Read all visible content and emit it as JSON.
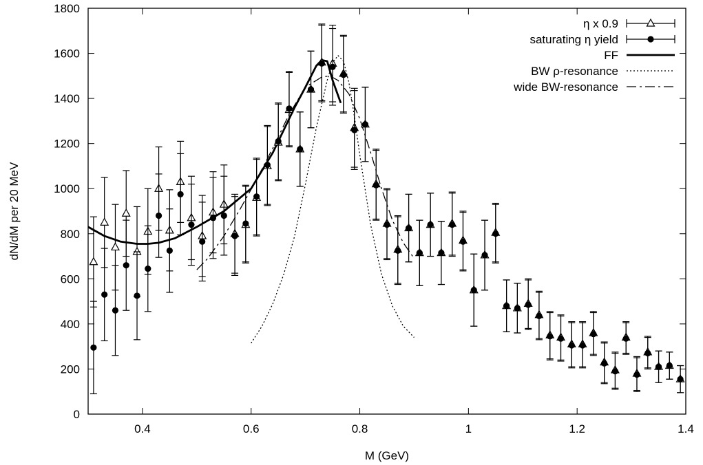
{
  "chart_data": {
    "type": "scatter",
    "title": "",
    "xlabel": "M (GeV)",
    "ylabel": "dN/dM per 20 MeV",
    "xlim": [
      0.3,
      1.4
    ],
    "ylim": [
      0,
      1800
    ],
    "xticks": [
      {
        "v": 0.4,
        "label": "0.4"
      },
      {
        "v": 0.6,
        "label": "0.6"
      },
      {
        "v": 0.8,
        "label": "0.8"
      },
      {
        "v": 1.0,
        "label": "1"
      },
      {
        "v": 1.2,
        "label": "1.2"
      },
      {
        "v": 1.4,
        "label": "1.4"
      }
    ],
    "yticks": [
      {
        "v": 0,
        "label": "0"
      },
      {
        "v": 200,
        "label": "200"
      },
      {
        "v": 400,
        "label": "400"
      },
      {
        "v": 600,
        "label": "600"
      },
      {
        "v": 800,
        "label": "800"
      },
      {
        "v": 1000,
        "label": "1000"
      },
      {
        "v": 1200,
        "label": "1200"
      },
      {
        "v": 1400,
        "label": "1400"
      },
      {
        "v": 1600,
        "label": "1600"
      },
      {
        "v": 1800,
        "label": "1800"
      }
    ],
    "grid": false,
    "legend_position": "top-right",
    "series": [
      {
        "name": "η x 0.9",
        "kind": "errorbar",
        "marker": "open-triangle",
        "x": [
          0.31,
          0.33,
          0.35,
          0.37,
          0.39,
          0.41,
          0.43,
          0.45,
          0.47,
          0.49,
          0.51,
          0.53,
          0.55,
          0.57,
          0.59,
          0.61,
          0.63,
          0.65,
          0.67,
          0.69,
          0.71,
          0.73,
          0.75,
          0.77,
          0.79,
          0.81,
          0.83,
          0.85,
          0.87,
          0.89,
          0.91,
          0.93,
          0.95,
          0.97,
          0.99,
          1.01,
          1.03,
          1.05,
          1.07,
          1.09,
          1.11,
          1.13,
          1.15,
          1.17,
          1.19,
          1.21,
          1.23,
          1.25,
          1.27,
          1.29,
          1.31,
          1.33,
          1.35,
          1.37,
          1.39
        ],
        "y": [
          675,
          850,
          740,
          890,
          720,
          810,
          1000,
          815,
          1030,
          870,
          790,
          895,
          930,
          800,
          840,
          960,
          1100,
          1205,
          1350,
          1175,
          1440,
          1560,
          1555,
          1510,
          1270,
          1285,
          1020,
          845,
          730,
          825,
          715,
          840,
          715,
          845,
          770,
          550,
          705,
          805,
          480,
          470,
          490,
          440,
          350,
          340,
          310,
          310,
          360,
          230,
          195,
          340,
          180,
          275,
          210,
          215,
          155
        ],
        "err": [
          200,
          200,
          190,
          190,
          200,
          190,
          185,
          180,
          180,
          185,
          180,
          180,
          175,
          175,
          170,
          170,
          175,
          170,
          165,
          165,
          170,
          170,
          170,
          170,
          175,
          165,
          155,
          155,
          150,
          150,
          145,
          140,
          140,
          140,
          130,
          160,
          155,
          130,
          115,
          110,
          110,
          105,
          105,
          100,
          100,
          100,
          95,
          90,
          80,
          70,
          75,
          70,
          70,
          60,
          60
        ]
      },
      {
        "name": "saturating η yield",
        "kind": "errorbar",
        "marker": "filled-circle",
        "x": [
          0.31,
          0.33,
          0.35,
          0.37,
          0.39,
          0.41,
          0.43,
          0.45,
          0.47,
          0.49,
          0.51,
          0.53,
          0.55,
          0.57,
          0.59,
          0.61,
          0.63,
          0.65,
          0.67,
          0.69,
          0.71,
          0.73,
          0.75,
          0.77,
          0.79,
          0.81,
          0.83,
          0.85,
          0.87,
          0.89,
          0.91,
          0.93,
          0.95,
          0.97,
          0.99,
          1.01,
          1.03,
          1.05,
          1.07,
          1.09,
          1.11,
          1.13,
          1.15,
          1.17,
          1.19,
          1.21,
          1.23,
          1.25,
          1.27,
          1.29,
          1.31,
          1.33,
          1.35,
          1.37,
          1.39
        ],
        "y": [
          295,
          530,
          460,
          660,
          525,
          645,
          880,
          725,
          975,
          840,
          765,
          870,
          880,
          790,
          845,
          965,
          1105,
          1210,
          1355,
          1175,
          1440,
          1555,
          1540,
          1505,
          1260,
          1285,
          1015,
          840,
          725,
          825,
          715,
          840,
          715,
          840,
          765,
          550,
          705,
          800,
          480,
          470,
          485,
          435,
          345,
          335,
          305,
          305,
          355,
          225,
          190,
          335,
          175,
          270,
          210,
          215,
          155
        ],
        "err": [
          205,
          205,
          200,
          200,
          195,
          190,
          185,
          185,
          180,
          180,
          175,
          180,
          175,
          175,
          170,
          170,
          175,
          170,
          165,
          165,
          170,
          170,
          170,
          170,
          175,
          165,
          155,
          155,
          150,
          150,
          145,
          140,
          140,
          140,
          130,
          160,
          155,
          130,
          115,
          110,
          110,
          105,
          105,
          100,
          100,
          100,
          95,
          90,
          80,
          70,
          75,
          70,
          70,
          60,
          60
        ]
      },
      {
        "name": "FF",
        "kind": "line",
        "style": "thick-solid",
        "x": [
          0.3,
          0.33,
          0.36,
          0.39,
          0.41,
          0.43,
          0.46,
          0.5,
          0.55,
          0.6,
          0.64,
          0.68,
          0.7,
          0.72,
          0.73,
          0.74,
          0.75,
          0.765
        ],
        "y": [
          830,
          790,
          765,
          755,
          755,
          760,
          780,
          830,
          900,
          1000,
          1160,
          1360,
          1450,
          1545,
          1570,
          1565,
          1480,
          1380
        ]
      },
      {
        "name": "BW ρ-resonance",
        "kind": "line",
        "style": "dotted",
        "x": [
          0.6,
          0.62,
          0.64,
          0.66,
          0.68,
          0.7,
          0.72,
          0.74,
          0.75,
          0.76,
          0.77,
          0.78,
          0.79,
          0.8,
          0.82,
          0.84,
          0.86,
          0.88,
          0.9
        ],
        "y": [
          315,
          390,
          490,
          620,
          790,
          1020,
          1270,
          1480,
          1560,
          1590,
          1565,
          1470,
          1320,
          1150,
          840,
          620,
          480,
          390,
          340
        ]
      },
      {
        "name": "wide BW-resonance",
        "kind": "line",
        "style": "dash-dot",
        "x": [
          0.5,
          0.52,
          0.55,
          0.58,
          0.61,
          0.64,
          0.67,
          0.7,
          0.73,
          0.745,
          0.76,
          0.78,
          0.8,
          0.82,
          0.84,
          0.86,
          0.88,
          0.9
        ],
        "y": [
          640,
          690,
          790,
          910,
          1040,
          1180,
          1330,
          1450,
          1495,
          1500,
          1480,
          1420,
          1310,
          1160,
          1000,
          860,
          760,
          690
        ]
      }
    ]
  }
}
